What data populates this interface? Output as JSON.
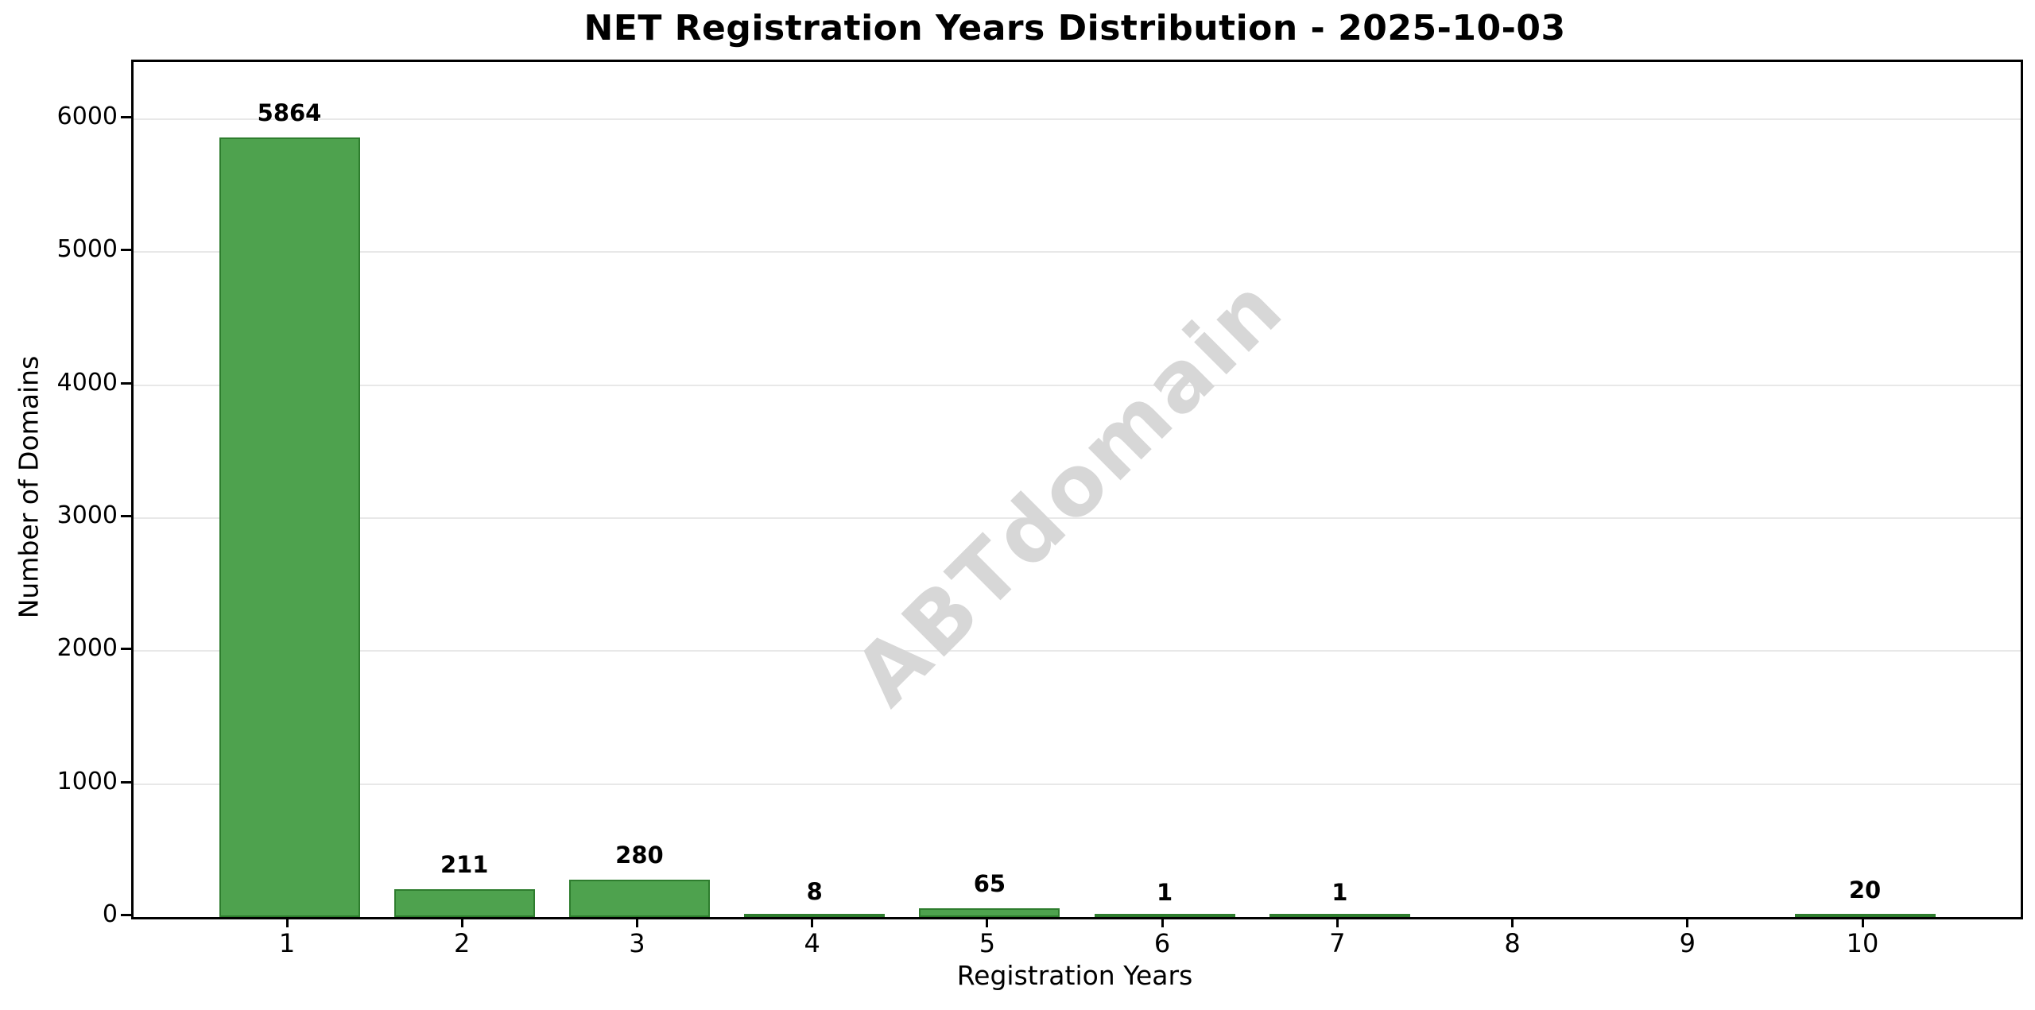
{
  "chart_data": {
    "type": "bar",
    "title": "NET Registration Years Distribution - 2025-10-03",
    "xlabel": "Registration Years",
    "ylabel": "Number of Domains",
    "categories": [
      "1",
      "2",
      "3",
      "4",
      "5",
      "6",
      "7",
      "8",
      "9",
      "10"
    ],
    "values": [
      5864,
      211,
      280,
      8,
      65,
      1,
      1,
      0,
      0,
      20
    ],
    "bar_value_labels": [
      "5864",
      "211",
      "280",
      "8",
      "65",
      "1",
      "1",
      "",
      "",
      "20"
    ],
    "ytick_values": [
      0,
      1000,
      2000,
      3000,
      4000,
      5000,
      6000
    ],
    "ytick_labels": [
      "0",
      "1000",
      "2000",
      "3000",
      "4000",
      "5000",
      "6000"
    ],
    "ylim": [
      0,
      6430
    ],
    "grid": "horizontal",
    "legend_position": "none",
    "watermark": "ABTdomain",
    "bar_color": "#4ea24e",
    "bar_edge_color": "#2e7d2e",
    "gridline_color": "#e8e8e8",
    "text_color": "#000000",
    "watermark_color": "#d7d7d7",
    "background_color": "#ffffff"
  }
}
